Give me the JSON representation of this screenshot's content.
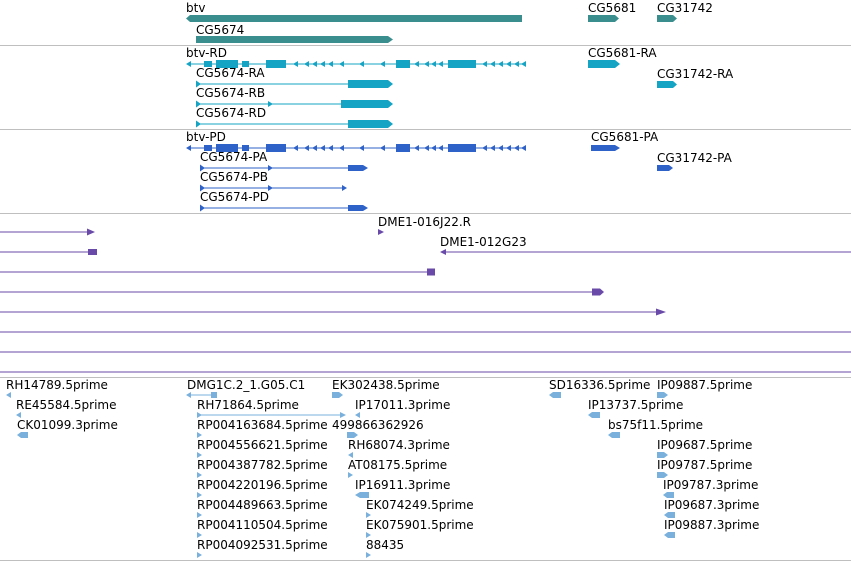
{
  "tracks": {
    "genes": {
      "features": [
        {
          "id": "gene-btv",
          "label": "btv"
        },
        {
          "id": "gene-CG5674",
          "label": "CG5674"
        },
        {
          "id": "gene-CG5681",
          "label": "CG5681"
        },
        {
          "id": "gene-CG31742",
          "label": "CG31742"
        }
      ]
    },
    "transcripts": {
      "features": [
        {
          "id": "tx-btv-RD",
          "label": "btv-RD"
        },
        {
          "id": "tx-CG5674-RA",
          "label": "CG5674-RA"
        },
        {
          "id": "tx-CG5674-RB",
          "label": "CG5674-RB"
        },
        {
          "id": "tx-CG5674-RD",
          "label": "CG5674-RD"
        },
        {
          "id": "tx-CG5681-RA",
          "label": "CG5681-RA"
        },
        {
          "id": "tx-CG31742-RA",
          "label": "CG31742-RA"
        }
      ]
    },
    "proteins": {
      "features": [
        {
          "id": "pp-btv-PD",
          "label": "btv-PD"
        },
        {
          "id": "pp-CG5674-PA",
          "label": "CG5674-PA"
        },
        {
          "id": "pp-CG5674-PB",
          "label": "CG5674-PB"
        },
        {
          "id": "pp-CG5674-PD",
          "label": "CG5674-PD"
        },
        {
          "id": "pp-CG5681-PA",
          "label": "CG5681-PA"
        },
        {
          "id": "pp-CG31742-PA",
          "label": "CG31742-PA"
        }
      ]
    },
    "clones": {
      "features": [
        {
          "id": "clone-016J22",
          "label": "DME1-016J22.R"
        },
        {
          "id": "clone-012G23",
          "label": "DME1-012G23"
        }
      ]
    },
    "ests": {
      "features": [
        {
          "id": "est-RH14789",
          "label": "RH14789.5prime"
        },
        {
          "id": "est-RE45584",
          "label": "RE45584.5prime"
        },
        {
          "id": "est-CK01099",
          "label": "CK01099.3prime"
        },
        {
          "id": "est-DMG1C2",
          "label": "DMG1C.2_1.G05.C1"
        },
        {
          "id": "est-RH71864",
          "label": "RH71864.5prime"
        },
        {
          "id": "est-RP004163684",
          "label": "RP004163684.5prime"
        },
        {
          "id": "est-RP004556621",
          "label": "RP004556621.5prime"
        },
        {
          "id": "est-RP004387782",
          "label": "RP004387782.5prime"
        },
        {
          "id": "est-RP004220196",
          "label": "RP004220196.5prime"
        },
        {
          "id": "est-RP004489663",
          "label": "RP004489663.5prime"
        },
        {
          "id": "est-RP004110504",
          "label": "RP004110504.5prime"
        },
        {
          "id": "est-RP004092531",
          "label": "RP004092531.5prime"
        },
        {
          "id": "est-EK302438",
          "label": "EK302438.5prime"
        },
        {
          "id": "est-IP17011",
          "label": "IP17011.3prime"
        },
        {
          "id": "est-499866362926",
          "label": "499866362926"
        },
        {
          "id": "est-RH68074",
          "label": "RH68074.3prime"
        },
        {
          "id": "est-AT08175",
          "label": "AT08175.5prime"
        },
        {
          "id": "est-IP16911",
          "label": "IP16911.3prime"
        },
        {
          "id": "est-EK074249",
          "label": "EK074249.5prime"
        },
        {
          "id": "est-EK075901",
          "label": "EK075901.5prime"
        },
        {
          "id": "est-88435",
          "label": "88435"
        },
        {
          "id": "est-SD16336",
          "label": "SD16336.5prime"
        },
        {
          "id": "est-IP13737",
          "label": "IP13737.5prime"
        },
        {
          "id": "est-bs75f11",
          "label": "bs75f11.5prime"
        },
        {
          "id": "est-IP09887-a",
          "label": "IP09887.5prime"
        },
        {
          "id": "est-IP09687-5",
          "label": "IP09687.5prime"
        },
        {
          "id": "est-IP09787-5",
          "label": "IP09787.5prime"
        },
        {
          "id": "est-IP09787-3",
          "label": "IP09787.3prime"
        },
        {
          "id": "est-IP09687-3",
          "label": "IP09687.3prime"
        },
        {
          "id": "est-IP09887-3",
          "label": "IP09887.3prime"
        }
      ]
    }
  },
  "colors": {
    "gene": "#3a8e8e",
    "transcript": "#16a4c4",
    "protein": "#2f62c8",
    "clone": "#6a4aa8",
    "est": "#7ab0dc",
    "divider": "#bfbfbf"
  }
}
